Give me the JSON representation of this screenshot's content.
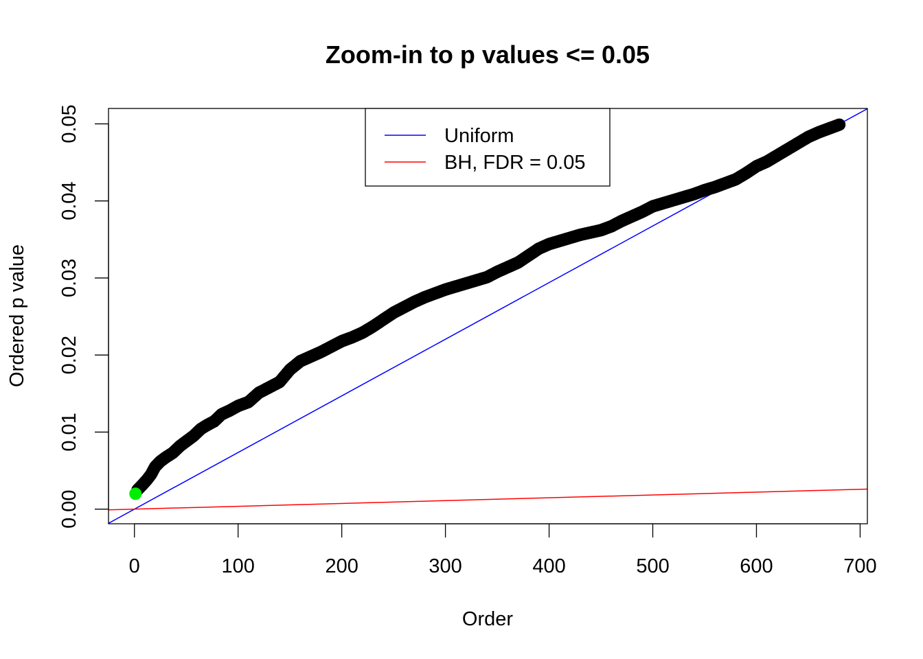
{
  "chart_data": {
    "type": "scatter",
    "title": "Zoom-in to p values <= 0.05",
    "xlabel": "Order",
    "ylabel": "Ordered p value",
    "xlim": [
      -25,
      707
    ],
    "ylim": [
      -0.0019,
      0.052
    ],
    "x_ticks": [
      0,
      100,
      200,
      300,
      400,
      500,
      600,
      700
    ],
    "x_tick_labels": [
      "0",
      "100",
      "200",
      "300",
      "400",
      "500",
      "600",
      "700"
    ],
    "y_ticks": [
      0.0,
      0.01,
      0.02,
      0.03,
      0.04,
      0.05
    ],
    "y_tick_labels": [
      "0.00",
      "0.01",
      "0.02",
      "0.03",
      "0.04",
      "0.05"
    ],
    "grid": false,
    "legend_position": "top-center",
    "legend": [
      {
        "label": "Uniform",
        "color": "#0000ff"
      },
      {
        "label": "BH, FDR = 0.05",
        "color": "#ff0000"
      }
    ],
    "series": [
      {
        "name": "",
        "color": "#000000",
        "points": [
          [
            3,
            0.0025
          ],
          [
            8,
            0.0032
          ],
          [
            12,
            0.0038
          ],
          [
            16,
            0.0045
          ],
          [
            20,
            0.0055
          ],
          [
            25,
            0.0062
          ],
          [
            30,
            0.0067
          ],
          [
            37,
            0.0073
          ],
          [
            44,
            0.0082
          ],
          [
            50,
            0.0088
          ],
          [
            57,
            0.0095
          ],
          [
            64,
            0.0104
          ],
          [
            70,
            0.0109
          ],
          [
            77,
            0.0114
          ],
          [
            84,
            0.0123
          ],
          [
            92,
            0.0128
          ],
          [
            100,
            0.0134
          ],
          [
            110,
            0.0139
          ],
          [
            120,
            0.0151
          ],
          [
            130,
            0.0158
          ],
          [
            140,
            0.0165
          ],
          [
            150,
            0.0181
          ],
          [
            160,
            0.0192
          ],
          [
            170,
            0.0198
          ],
          [
            180,
            0.0204
          ],
          [
            190,
            0.0211
          ],
          [
            200,
            0.0218
          ],
          [
            210,
            0.0223
          ],
          [
            220,
            0.0229
          ],
          [
            230,
            0.0237
          ],
          [
            240,
            0.0246
          ],
          [
            250,
            0.0255
          ],
          [
            260,
            0.0262
          ],
          [
            270,
            0.0269
          ],
          [
            280,
            0.0275
          ],
          [
            290,
            0.028
          ],
          [
            300,
            0.0285
          ],
          [
            310,
            0.0289
          ],
          [
            320,
            0.0293
          ],
          [
            330,
            0.0297
          ],
          [
            340,
            0.0301
          ],
          [
            350,
            0.0308
          ],
          [
            360,
            0.0314
          ],
          [
            370,
            0.032
          ],
          [
            380,
            0.0329
          ],
          [
            390,
            0.0338
          ],
          [
            400,
            0.0344
          ],
          [
            410,
            0.0348
          ],
          [
            420,
            0.0352
          ],
          [
            430,
            0.0356
          ],
          [
            440,
            0.0359
          ],
          [
            450,
            0.0362
          ],
          [
            460,
            0.0367
          ],
          [
            470,
            0.0374
          ],
          [
            480,
            0.038
          ],
          [
            490,
            0.0386
          ],
          [
            500,
            0.0393
          ],
          [
            510,
            0.0397
          ],
          [
            520,
            0.0401
          ],
          [
            530,
            0.0405
          ],
          [
            540,
            0.0409
          ],
          [
            550,
            0.0414
          ],
          [
            560,
            0.0418
          ],
          [
            570,
            0.0423
          ],
          [
            580,
            0.0428
          ],
          [
            590,
            0.0436
          ],
          [
            600,
            0.0445
          ],
          [
            610,
            0.0451
          ],
          [
            620,
            0.0459
          ],
          [
            630,
            0.0467
          ],
          [
            640,
            0.0475
          ],
          [
            650,
            0.0483
          ],
          [
            660,
            0.0489
          ],
          [
            670,
            0.0494
          ],
          [
            680,
            0.0499
          ]
        ]
      },
      {
        "name": "",
        "color": "#00ee00",
        "points": [
          [
            1,
            0.002
          ]
        ]
      }
    ],
    "lines": [
      {
        "name": "Uniform",
        "color": "#0000ff",
        "slope": 7.35e-05,
        "intercept": 0
      },
      {
        "name": "BH, FDR = 0.05",
        "color": "#ff0000",
        "slope": 3.68e-06,
        "intercept": 0
      }
    ]
  }
}
